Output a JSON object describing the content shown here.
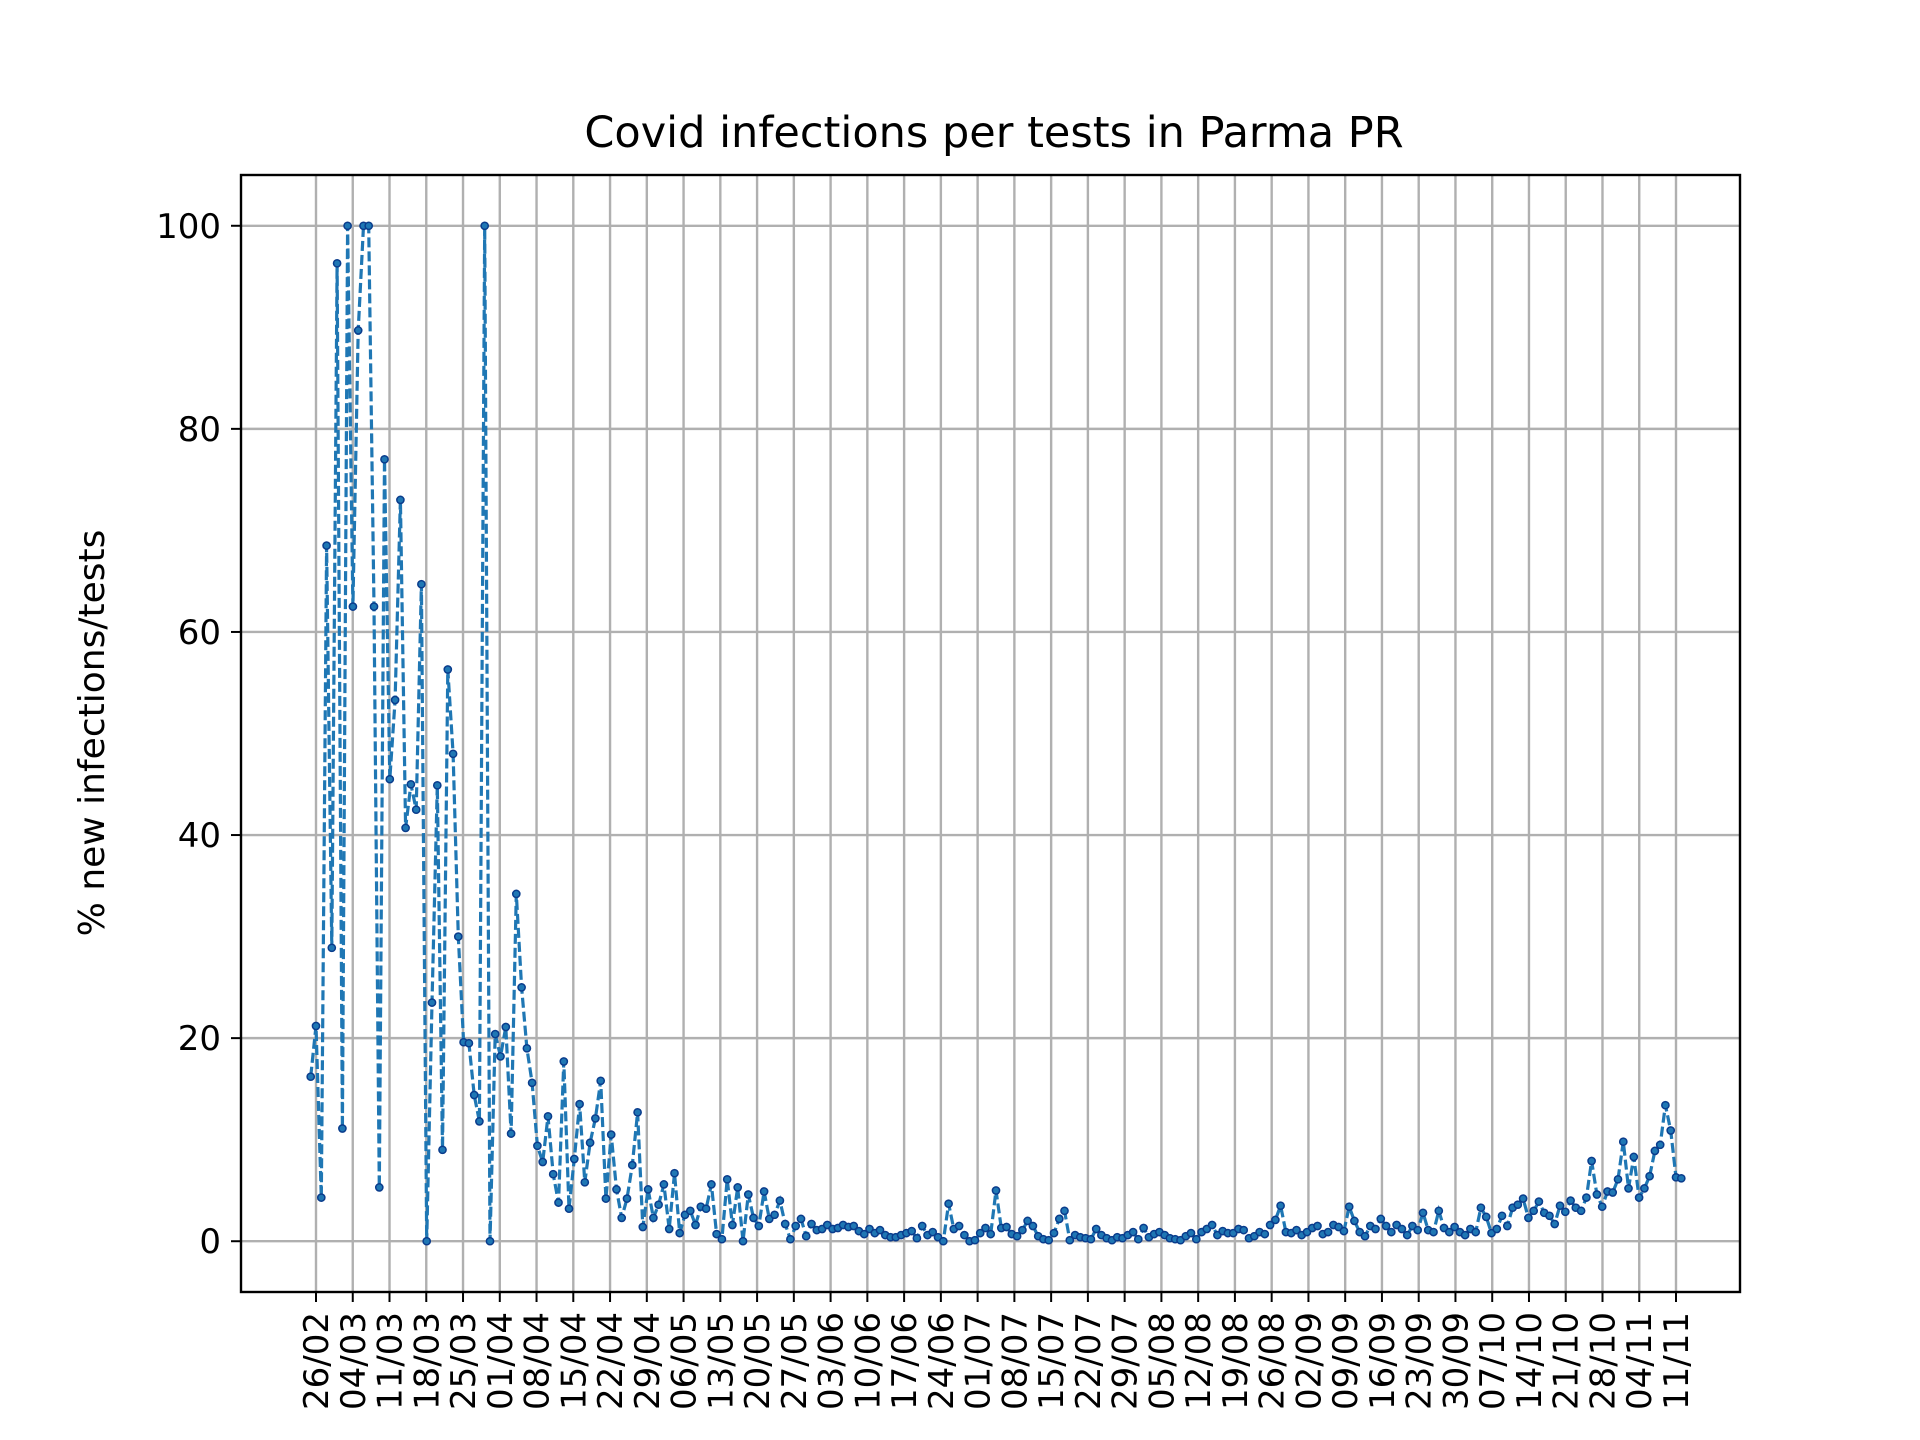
{
  "chart_data": {
    "type": "line",
    "title": "Covid infections per tests in Parma PR",
    "xlabel": "",
    "ylabel": "% new infections/tests",
    "ylim": [
      -5,
      105
    ],
    "yticks": [
      0,
      20,
      40,
      60,
      80,
      100
    ],
    "grid": true,
    "legend": "none",
    "colors": {
      "line": "#1f77b4",
      "marker_edge": "#0a3c8c",
      "grid": "#b0b0b0"
    },
    "x_start": "25/02",
    "x_end": "12/11",
    "xticks": [
      "26/02",
      "04/03",
      "11/03",
      "18/03",
      "25/03",
      "01/04",
      "08/04",
      "15/04",
      "22/04",
      "29/04",
      "06/05",
      "13/05",
      "20/05",
      "27/05",
      "03/06",
      "10/06",
      "17/06",
      "24/06",
      "01/07",
      "08/07",
      "15/07",
      "22/07",
      "29/07",
      "05/08",
      "12/08",
      "19/08",
      "26/08",
      "02/09",
      "09/09",
      "16/09",
      "23/09",
      "30/09",
      "07/10",
      "14/10",
      "21/10",
      "28/10",
      "04/11",
      "11/11"
    ],
    "series": [
      {
        "values": [
          16.2,
          21.2,
          4.3,
          68.5,
          28.9,
          96.3,
          11.1,
          100,
          62.5,
          89.7,
          100,
          100,
          62.5,
          5.3,
          77,
          45.5,
          53.3,
          73,
          40.7,
          45,
          42.5,
          64.7,
          0,
          23.5,
          44.9,
          9,
          56.3,
          48,
          30,
          19.6,
          19.5,
          14.4,
          11.8,
          100,
          0,
          20.4,
          18.2,
          21.1,
          10.6,
          34.2,
          25,
          19,
          15.6,
          9.4,
          7.8,
          12.3,
          6.6,
          3.8,
          17.7,
          3.2,
          8.1,
          13.5,
          5.8,
          9.7,
          12.1,
          15.8,
          4.2,
          10.5,
          5.1,
          2.3,
          4.2,
          7.5,
          12.7,
          1.4,
          5.1,
          2.3,
          3.6,
          5.6,
          1.2,
          6.7,
          0.8,
          2.6,
          3,
          1.6,
          3.4,
          3.2,
          5.6,
          0.7,
          0.2,
          6.1,
          1.6,
          5.3,
          0,
          4.6,
          2.3,
          1.5,
          4.9,
          2.2,
          2.6,
          4,
          1.7,
          0.2,
          1.5,
          2.2,
          0.5,
          1.7,
          1.1,
          1.2,
          1.6,
          1.2,
          1.3,
          1.6,
          1.4,
          1.5,
          1,
          0.7,
          1.2,
          0.8,
          1.1,
          0.6,
          0.4,
          0.4,
          0.6,
          0.8,
          1,
          0.3,
          1.5,
          0.6,
          0.9,
          0.4,
          0,
          3.7,
          1.2,
          1.5,
          0.6,
          0,
          0.1,
          0.8,
          1.3,
          0.7,
          5,
          1.3,
          1.4,
          0.7,
          0.5,
          1.1,
          2,
          1.5,
          0.5,
          0.2,
          0.1,
          0.8,
          2.2,
          3,
          0.1,
          0.6,
          0.4,
          0.3,
          0.2,
          1.2,
          0.6,
          0.3,
          0.1,
          0.4,
          0.3,
          0.6,
          0.9,
          0.2,
          1.3,
          0.4,
          0.7,
          0.9,
          0.6,
          0.3,
          0.2,
          0.1,
          0.5,
          0.8,
          0.2,
          0.9,
          1.2,
          1.6,
          0.6,
          1,
          0.8,
          0.8,
          1.2,
          1.1,
          0.3,
          0.5,
          0.9,
          0.7,
          1.6,
          2.1,
          3.5,
          0.9,
          0.8,
          1.1,
          0.6,
          0.9,
          1.3,
          1.5,
          0.7,
          0.9,
          1.6,
          1.4,
          1,
          3.4,
          2,
          0.9,
          0.5,
          1.5,
          1.2,
          2.2,
          1.5,
          0.9,
          1.6,
          1.2,
          0.6,
          1.5,
          1.1,
          2.8,
          1.1,
          0.9,
          3,
          1.3,
          0.9,
          1.4,
          0.9,
          0.6,
          1.2,
          0.9,
          3.3,
          2.4,
          0.8,
          1.2,
          2.5,
          1.5,
          3.3,
          3.6,
          4.2,
          2.3,
          3,
          3.9,
          2.8,
          2.5,
          1.7,
          3.5,
          2.9,
          4,
          3.3,
          3,
          4.3,
          7.9,
          4.6,
          3.4,
          4.9,
          4.8,
          6.1,
          9.8,
          5.2,
          8.3,
          4.3,
          5.2,
          6.4,
          8.9,
          9.5,
          13.4,
          10.9,
          6.3,
          6.2
        ]
      }
    ]
  }
}
